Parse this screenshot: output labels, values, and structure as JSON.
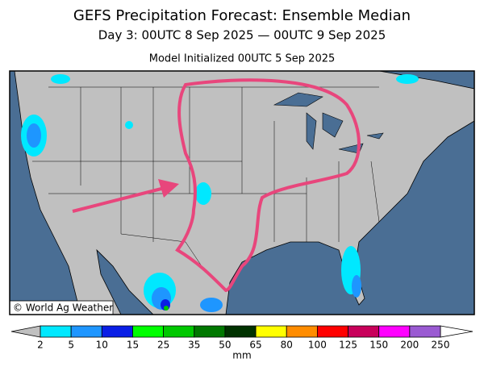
{
  "header": {
    "title": "GEFS Precipitation Forecast: Ensemble Median",
    "subtitle": "Day 3: 00UTC 8 Sep 2025 — 00UTC 9 Sep 2025",
    "initialized": "Model Initialized 00UTC 5 Sep 2025"
  },
  "map": {
    "credit": "© World Ag Weather"
  },
  "legend": {
    "ticks": [
      2,
      5,
      10,
      15,
      25,
      35,
      50,
      65,
      80,
      100,
      125,
      150,
      200,
      250
    ],
    "colors": [
      "#00e8ff",
      "#1e96ff",
      "#0a1ee6",
      "#00ff00",
      "#00c800",
      "#007800",
      "#003200",
      "#ffff00",
      "#ff8c00",
      "#ff0000",
      "#c8005a",
      "#ff00ff",
      "#9a5ad2"
    ],
    "unit": "mm"
  }
}
